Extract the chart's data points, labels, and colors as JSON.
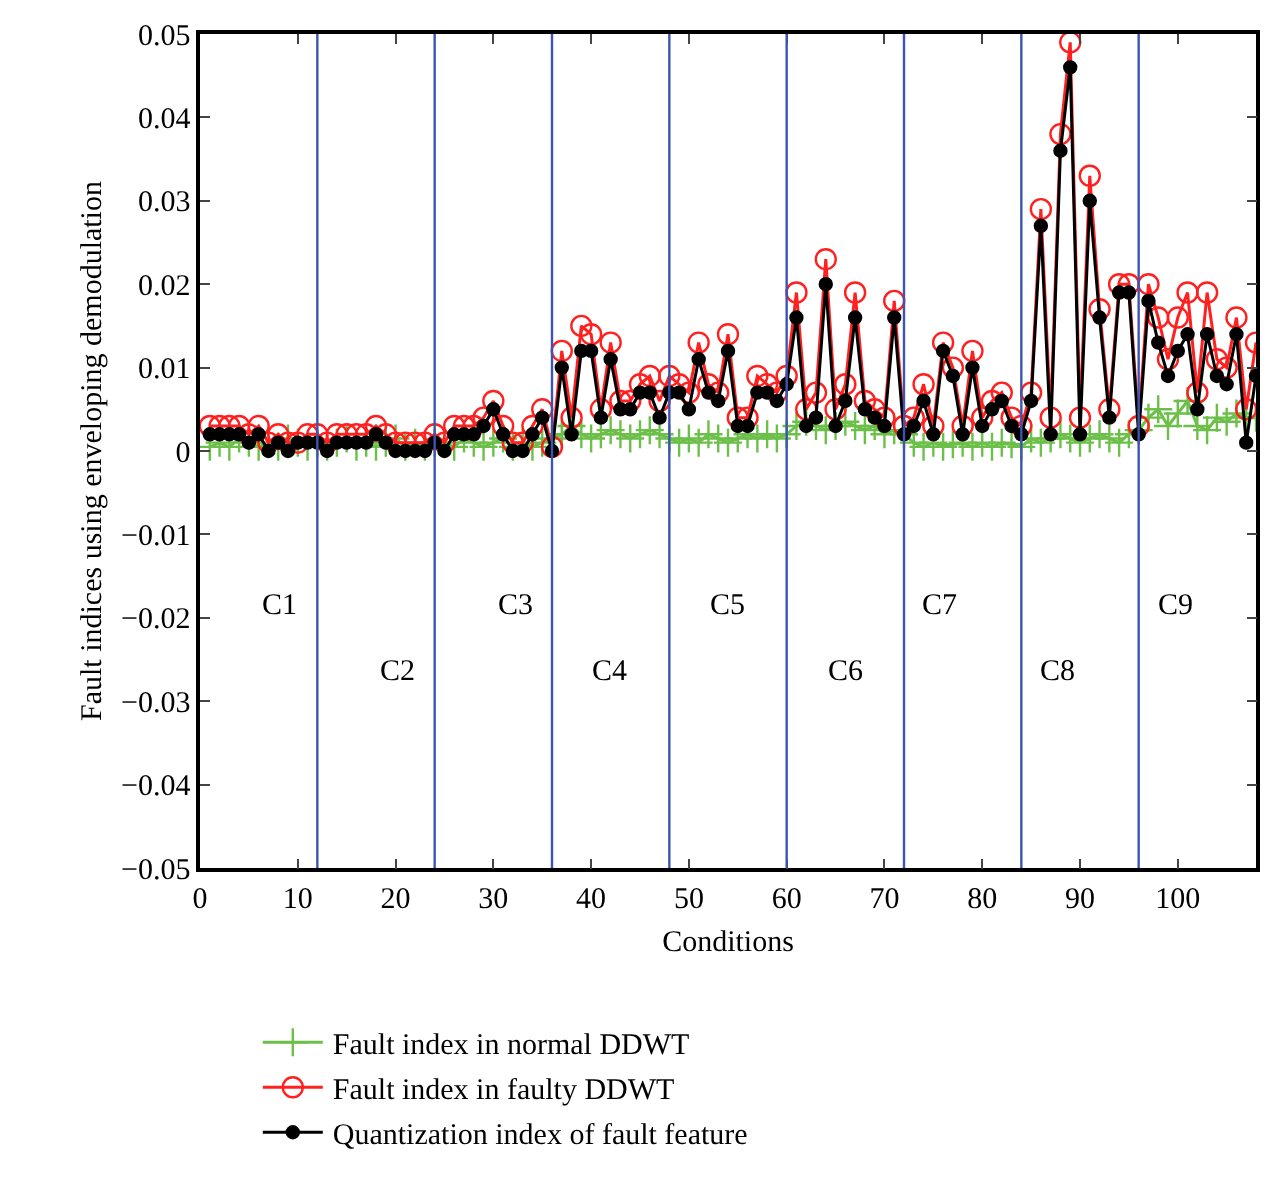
{
  "chart_data": {
    "type": "line",
    "xlabel": "Conditions",
    "ylabel": "Fault indices using enveloping demodulation",
    "x": [
      1,
      2,
      3,
      4,
      5,
      6,
      7,
      8,
      9,
      10,
      11,
      12,
      13,
      14,
      15,
      16,
      17,
      18,
      19,
      20,
      21,
      22,
      23,
      24,
      25,
      26,
      27,
      28,
      29,
      30,
      31,
      32,
      33,
      34,
      35,
      36,
      37,
      38,
      39,
      40,
      41,
      42,
      43,
      44,
      45,
      46,
      47,
      48,
      49,
      50,
      51,
      52,
      53,
      54,
      55,
      56,
      57,
      58,
      59,
      60,
      61,
      62,
      63,
      64,
      65,
      66,
      67,
      68,
      69,
      70,
      71,
      72,
      73,
      74,
      75,
      76,
      77,
      78,
      79,
      80,
      81,
      82,
      83,
      84,
      85,
      86,
      87,
      88,
      89,
      90,
      91,
      92,
      93,
      94,
      95,
      96,
      97,
      98,
      99,
      100,
      101,
      102,
      103,
      104,
      105,
      106,
      107,
      108
    ],
    "series": [
      {
        "name": "Fault index in normal DDWT",
        "color": "#6cc04a",
        "marker": "cross",
        "values": [
          0.0005,
          0.001,
          0.0005,
          0.0015,
          0.001,
          0.0005,
          0.001,
          0.0005,
          0.0015,
          0.001,
          0.0005,
          0.001,
          0.0005,
          0.001,
          0.0015,
          0.0005,
          0.001,
          0.0005,
          0.001,
          0.0015,
          0.0005,
          0.001,
          0.0005,
          0.001,
          0.001,
          0.0005,
          0.0015,
          0.001,
          0.0005,
          0.001,
          0.0015,
          0.0005,
          0.001,
          0.0005,
          0.001,
          0.0015,
          0.002,
          0.003,
          0.002,
          0.0015,
          0.002,
          0.0025,
          0.002,
          0.0015,
          0.002,
          0.0025,
          0.002,
          0.0015,
          0.001,
          0.0015,
          0.001,
          0.002,
          0.0015,
          0.001,
          0.0015,
          0.002,
          0.0015,
          0.002,
          0.0015,
          0.002,
          0.003,
          0.0035,
          0.003,
          0.0025,
          0.003,
          0.0035,
          0.003,
          0.0025,
          0.003,
          0.002,
          0.0025,
          0.002,
          0.001,
          0.0005,
          0.001,
          0.0005,
          0.0008,
          0.001,
          0.0005,
          0.001,
          0.0005,
          0.001,
          0.0008,
          0.0005,
          0.0015,
          0.001,
          0.0015,
          0.002,
          0.0015,
          0.001,
          0.0015,
          0.002,
          0.0015,
          0.001,
          0.002,
          0.0025,
          0.004,
          0.005,
          0.003,
          0.0045,
          0.006,
          0.003,
          0.0025,
          0.004,
          0.0035,
          0.0045,
          0.004,
          0.004
        ]
      },
      {
        "name": "Fault index in faulty DDWT",
        "color": "#ff2020",
        "marker": "circle",
        "values": [
          0.003,
          0.003,
          0.003,
          0.003,
          0.002,
          0.003,
          0.001,
          0.002,
          0.001,
          0.001,
          0.002,
          0.002,
          0.001,
          0.002,
          0.002,
          0.002,
          0.002,
          0.003,
          0.002,
          0.001,
          0.001,
          0.001,
          0.001,
          0.002,
          0.001,
          0.003,
          0.003,
          0.003,
          0.004,
          0.006,
          0.003,
          0.001,
          0.001,
          0.003,
          0.005,
          0.0005,
          0.012,
          0.004,
          0.015,
          0.014,
          0.005,
          0.013,
          0.006,
          0.006,
          0.008,
          0.009,
          0.006,
          0.009,
          0.008,
          0.007,
          0.013,
          0.008,
          0.007,
          0.014,
          0.004,
          0.004,
          0.009,
          0.008,
          0.007,
          0.009,
          0.019,
          0.005,
          0.007,
          0.023,
          0.005,
          0.008,
          0.019,
          0.006,
          0.005,
          0.004,
          0.018,
          0.003,
          0.004,
          0.008,
          0.003,
          0.013,
          0.01,
          0.003,
          0.012,
          0.004,
          0.006,
          0.007,
          0.004,
          0.003,
          0.007,
          0.029,
          0.004,
          0.038,
          0.049,
          0.004,
          0.033,
          0.017,
          0.005,
          0.02,
          0.02,
          0.003,
          0.02,
          0.016,
          0.011,
          0.016,
          0.019,
          0.007,
          0.019,
          0.011,
          0.01,
          0.016,
          0.005,
          0.013
        ]
      },
      {
        "name": "Quantization index of fault feature",
        "color": "#000000",
        "marker": "circle",
        "values": [
          0.002,
          0.002,
          0.002,
          0.002,
          0.001,
          0.002,
          0.0,
          0.001,
          0.0,
          0.001,
          0.001,
          0.001,
          0.0,
          0.001,
          0.001,
          0.001,
          0.001,
          0.002,
          0.001,
          0.0,
          0.0,
          0.0,
          0.0,
          0.001,
          0.0,
          0.002,
          0.002,
          0.002,
          0.003,
          0.005,
          0.002,
          0.0,
          0.0,
          0.002,
          0.004,
          0.0,
          0.01,
          0.002,
          0.012,
          0.012,
          0.004,
          0.011,
          0.005,
          0.005,
          0.007,
          0.007,
          0.004,
          0.007,
          0.007,
          0.005,
          0.011,
          0.007,
          0.006,
          0.012,
          0.003,
          0.003,
          0.007,
          0.007,
          0.006,
          0.008,
          0.016,
          0.003,
          0.004,
          0.02,
          0.003,
          0.006,
          0.016,
          0.005,
          0.004,
          0.003,
          0.016,
          0.002,
          0.003,
          0.006,
          0.002,
          0.012,
          0.009,
          0.002,
          0.01,
          0.003,
          0.005,
          0.006,
          0.003,
          0.002,
          0.006,
          0.027,
          0.002,
          0.036,
          0.046,
          0.002,
          0.03,
          0.016,
          0.004,
          0.019,
          0.019,
          0.002,
          0.018,
          0.013,
          0.009,
          0.012,
          0.014,
          0.005,
          0.014,
          0.009,
          0.008,
          0.014,
          0.001,
          0.009
        ]
      }
    ],
    "xlim": [
      0,
      108
    ],
    "xticks": [
      0,
      10,
      20,
      30,
      40,
      50,
      60,
      70,
      80,
      90,
      100
    ],
    "ylim": [
      -0.05,
      0.05
    ],
    "yticks": [
      {
        "value": -0.05,
        "label": "−0.05"
      },
      {
        "value": -0.04,
        "label": "−0.04"
      },
      {
        "value": -0.03,
        "label": "−0.03"
      },
      {
        "value": -0.02,
        "label": "−0.02"
      },
      {
        "value": -0.01,
        "label": "−0.01"
      },
      0,
      0.01,
      0.02,
      0.03,
      0.04,
      0.05
    ],
    "ref_lines": [
      {
        "axis": "x",
        "value": 12,
        "color": "#3d55b0"
      },
      {
        "axis": "x",
        "value": 24,
        "color": "#3d55b0"
      },
      {
        "axis": "x",
        "value": 36,
        "color": "#3d55b0"
      },
      {
        "axis": "x",
        "value": 48,
        "color": "#3d55b0"
      },
      {
        "axis": "x",
        "value": 60,
        "color": "#3d55b0"
      },
      {
        "axis": "x",
        "value": 72,
        "color": "#3d55b0"
      },
      {
        "axis": "x",
        "value": 84,
        "color": "#3d55b0"
      },
      {
        "axis": "x",
        "value": 96,
        "color": "#3d55b0"
      }
    ],
    "annotations": [
      "C1",
      "C2",
      "C3",
      "C4",
      "C5",
      "C6",
      "C7",
      "C8",
      "C9"
    ],
    "grid": false,
    "legend": "bottom",
    "line_style": "solid"
  }
}
